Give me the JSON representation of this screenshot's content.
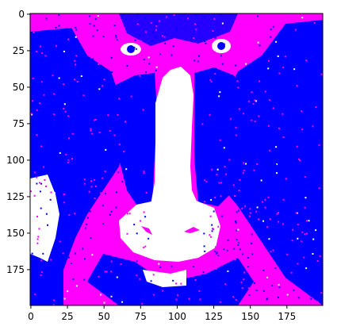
{
  "figure": {
    "description_free": true,
    "axes": {
      "x_ticks": [
        "0",
        "25",
        "50",
        "75",
        "100",
        "125",
        "150",
        "175"
      ],
      "y_ticks": [
        "0",
        "25",
        "50",
        "75",
        "100",
        "125",
        "150",
        "175"
      ],
      "x_tick_values": [
        0,
        25,
        50,
        75,
        100,
        125,
        150,
        175
      ],
      "y_tick_values": [
        0,
        25,
        50,
        75,
        100,
        125,
        150,
        175
      ],
      "xlim": [
        -0.5,
        199.5
      ],
      "ylim": [
        199.5,
        -0.5
      ]
    },
    "colors": {
      "magenta": "#ff00ff",
      "blue": "#0000ff",
      "white": "#ffffff",
      "frame": "#000000"
    }
  }
}
